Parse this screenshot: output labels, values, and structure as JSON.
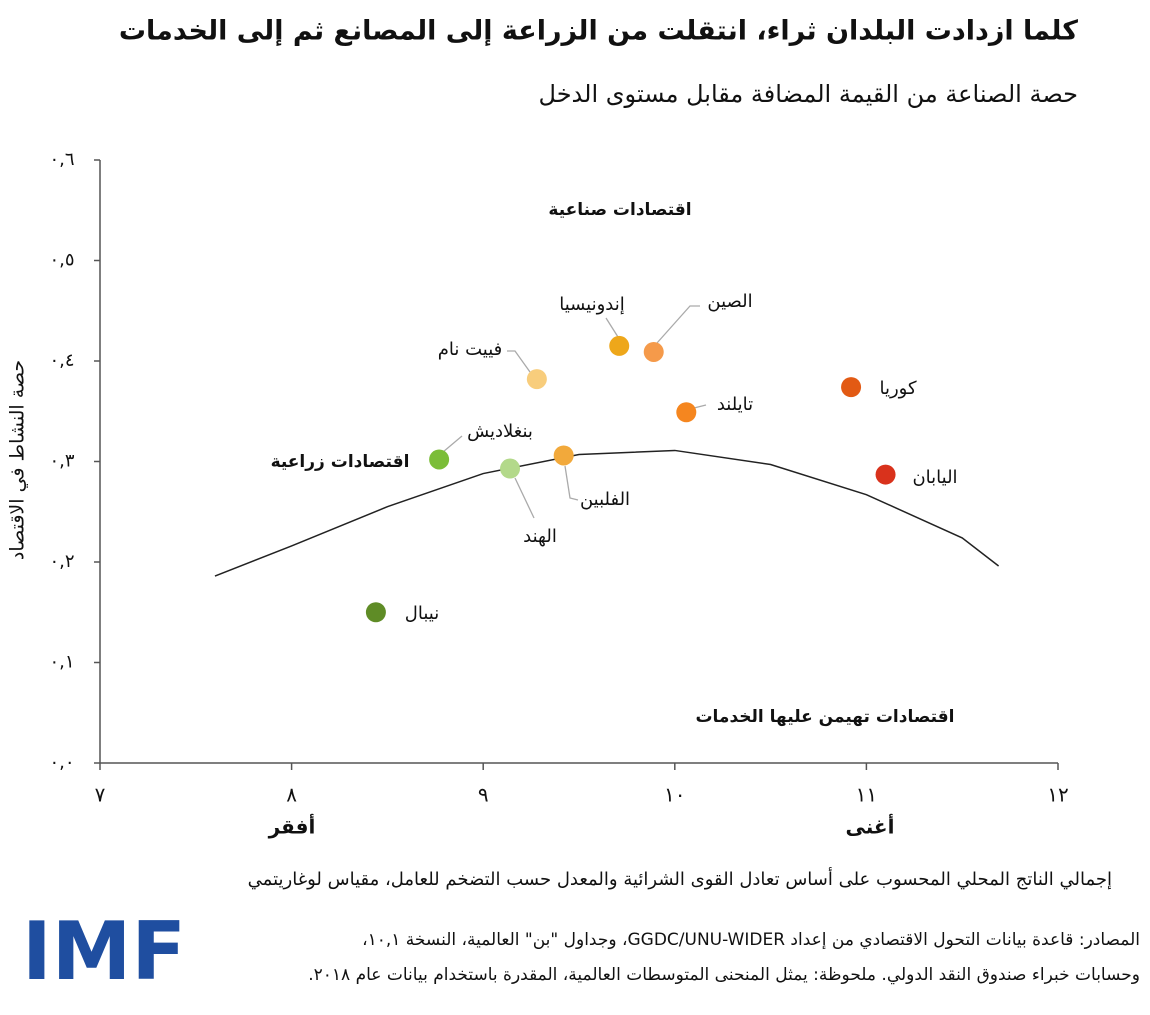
{
  "chart_data": {
    "type": "scatter",
    "title": "كلما ازدادت البلدان ثراء، انتقلت من الزراعة إلى المصانع ثم إلى الخدمات",
    "subtitle": "حصة الصناعة من القيمة المضافة مقابل مستوى الدخل",
    "y_label": "حصة النشاط في الاقتصاد",
    "x_label": "إجمالي الناتج المحلي المحسوب على أساس تعادل القوى الشرائية والمعدل حسب التضخم للعامل، مقياس لوغاريتمي",
    "xlim": [
      7,
      12
    ],
    "ylim": [
      0,
      0.6
    ],
    "xticks": [
      {
        "value": 7,
        "label": "٧"
      },
      {
        "value": 8,
        "label": "٨"
      },
      {
        "value": 9,
        "label": "٩"
      },
      {
        "value": 10,
        "label": "١٠"
      },
      {
        "value": 11,
        "label": "١١"
      },
      {
        "value": 12,
        "label": "١٢"
      }
    ],
    "yticks": [
      {
        "value": 0,
        "label": "٠,٠"
      },
      {
        "value": 0.1,
        "label": "٠,١"
      },
      {
        "value": 0.2,
        "label": "٠,٢"
      },
      {
        "value": 0.3,
        "label": "٠,٣"
      },
      {
        "value": 0.4,
        "label": "٠,٤"
      },
      {
        "value": 0.5,
        "label": "٠,٥"
      },
      {
        "value": 0.6,
        "label": "٠,٦"
      }
    ],
    "x_end_labels": [
      "أفقر",
      "أغنى"
    ],
    "annotations": [
      "اقتصادات صناعية",
      "اقتصادات زراعية",
      "اقتصادات تهيمن عليها الخدمات"
    ],
    "series": [
      {
        "name": "نيبال",
        "color": "#5f8c26",
        "x": [
          8.44
        ],
        "values": [
          0.15
        ]
      },
      {
        "name": "بنغلاديش",
        "color": "#7bbd38",
        "x": [
          8.77
        ],
        "values": [
          0.302
        ]
      },
      {
        "name": "الهند",
        "color": "#b3d98a",
        "x": [
          9.14
        ],
        "values": [
          0.293
        ]
      },
      {
        "name": "الفلبين",
        "color": "#f2a93b",
        "x": [
          9.42
        ],
        "values": [
          0.306
        ]
      },
      {
        "name": "فييت نام",
        "color": "#f8cd7c",
        "x": [
          9.28
        ],
        "values": [
          0.382
        ]
      },
      {
        "name": "إندونيسيا",
        "color": "#eea71a",
        "x": [
          9.71
        ],
        "values": [
          0.415
        ]
      },
      {
        "name": "الصين",
        "color": "#f59a4a",
        "x": [
          9.89
        ],
        "values": [
          0.409
        ]
      },
      {
        "name": "تايلند",
        "color": "#f5861f",
        "x": [
          10.06
        ],
        "values": [
          0.349
        ]
      },
      {
        "name": "كوريا",
        "color": "#e25a14",
        "x": [
          10.92
        ],
        "values": [
          0.374
        ]
      },
      {
        "name": "اليابان",
        "color": "#d9321c",
        "x": [
          11.1
        ],
        "values": [
          0.287
        ]
      }
    ],
    "trend": {
      "color": "#222222",
      "x": [
        7.6,
        8,
        8.5,
        9,
        9.5,
        10,
        10.5,
        11,
        11.5,
        11.69
      ],
      "values": [
        0.186,
        0.216,
        0.255,
        0.288,
        0.307,
        0.311,
        0.297,
        0.267,
        0.224,
        0.196
      ]
    }
  },
  "footer": {
    "source_lines": [
      "المصادر: قاعدة بيانات التحول الاقتصادي من إعداد GGDC/UNU-WIDER، وجداول \"بن\" العالمية، النسخة ١٠,١،",
      "وحسابات خبراء صندوق النقد الدولي. ملحوظة: يمثل المنحنى المتوسطات العالمية، المقدرة باستخدام بيانات عام ٢٠١٨."
    ],
    "logo": "IMF"
  }
}
